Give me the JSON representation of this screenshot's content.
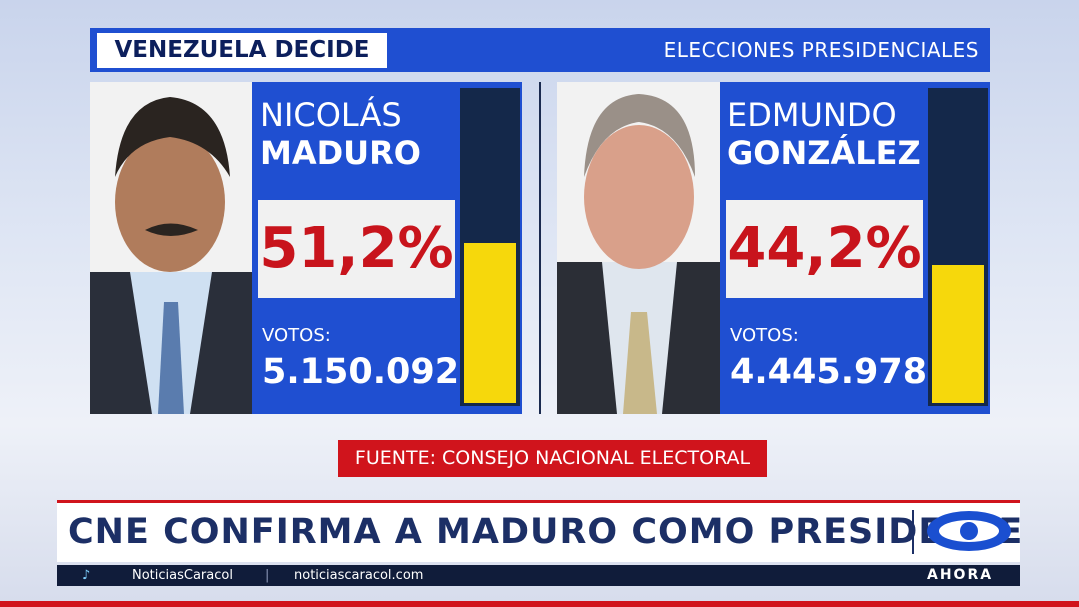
{
  "header": {
    "title": "VENEZUELA DECIDE",
    "subtitle": "ELECCIONES PRESIDENCIALES"
  },
  "candidates": [
    {
      "first_name": "NICOLÁS",
      "last_name": "MADURO",
      "percent": {
        "value": 51.2,
        "label": "51,2%"
      },
      "votes_label": "VOTOS:",
      "votes": "5.150.092"
    },
    {
      "first_name": "EDMUNDO",
      "last_name": "GONZÁLEZ",
      "percent": {
        "value": 44.2,
        "label": "44,2%"
      },
      "votes_label": "VOTOS:",
      "votes": "4.445.978"
    }
  ],
  "source": "FUENTE: CONSEJO NACIONAL ELECTORAL",
  "headline": "CNE CONFIRMA A MADURO COMO PRESIDENTE",
  "footer": {
    "handle": "NoticiasCaracol",
    "website": "noticiascaracol.com",
    "tag": "AHORA"
  }
}
